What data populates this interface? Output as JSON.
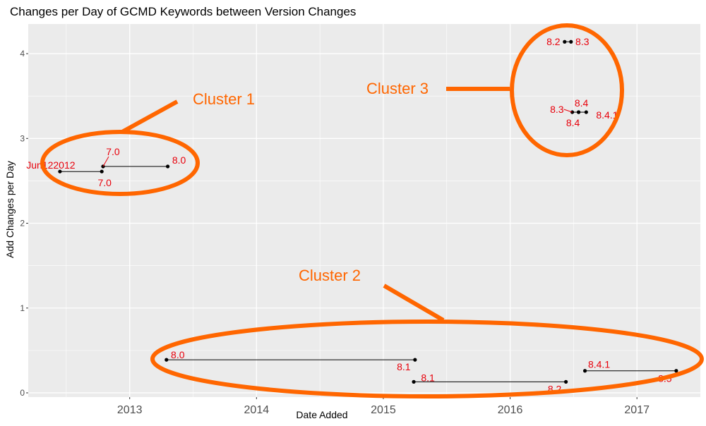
{
  "chart_data": {
    "type": "scatter",
    "title": "Changes per Day of GCMD Keywords between Version Changes",
    "xlabel": "Date Added",
    "ylabel": "Add Changes per Day",
    "xlim": [
      2012.2,
      2017.5
    ],
    "ylim": [
      -0.05,
      4.35
    ],
    "x_ticks": [
      {
        "value": 2013,
        "label": "2013"
      },
      {
        "value": 2014,
        "label": "2014"
      },
      {
        "value": 2015,
        "label": "2015"
      },
      {
        "value": 2016,
        "label": "2016"
      },
      {
        "value": 2017,
        "label": "2017"
      }
    ],
    "y_ticks": [
      {
        "value": 0,
        "label": "0"
      },
      {
        "value": 1,
        "label": "1"
      },
      {
        "value": 2,
        "label": "2"
      },
      {
        "value": 3,
        "label": "3"
      },
      {
        "value": 4,
        "label": "4"
      }
    ],
    "grid": true,
    "segments": [
      {
        "from": "Jun122012",
        "to": "7.0",
        "x": [
          2012.45,
          2012.78
        ],
        "y": [
          2.61,
          2.61
        ]
      },
      {
        "from": "7.0",
        "to": "8.0",
        "x": [
          2012.79,
          2013.3
        ],
        "y": [
          2.67,
          2.67
        ]
      },
      {
        "from": "8.0",
        "to": "8.1",
        "x": [
          2013.29,
          2015.25
        ],
        "y": [
          0.39,
          0.39
        ]
      },
      {
        "from": "8.1",
        "to": "8.2",
        "x": [
          2015.24,
          2016.44
        ],
        "y": [
          0.13,
          0.13
        ]
      },
      {
        "from": "8.2",
        "to": "8.3",
        "x": [
          2016.43,
          2016.48
        ],
        "y": [
          4.14,
          4.14
        ]
      },
      {
        "from": "8.3",
        "to": "8.4",
        "x": [
          2016.49,
          2016.54
        ],
        "y": [
          3.31,
          3.31
        ]
      },
      {
        "from": "8.4",
        "to": "8.4.1",
        "x": [
          2016.54,
          2016.6
        ],
        "y": [
          3.31,
          3.31
        ]
      },
      {
        "from": "8.4.1",
        "to": "8.5",
        "x": [
          2016.59,
          2017.31
        ],
        "y": [
          0.26,
          0.26
        ]
      }
    ],
    "labels": [
      {
        "text": "Jun122012",
        "x": 2012.45,
        "y": 2.61
      },
      {
        "text": "7.0",
        "x": 2012.78,
        "y": 2.61
      },
      {
        "text": "7.0",
        "x": 2012.79,
        "y": 2.67
      },
      {
        "text": "8.0",
        "x": 2013.3,
        "y": 2.67
      },
      {
        "text": "8.0",
        "x": 2013.29,
        "y": 0.39
      },
      {
        "text": "8.1",
        "x": 2015.25,
        "y": 0.39
      },
      {
        "text": "8.1",
        "x": 2015.24,
        "y": 0.13
      },
      {
        "text": "8.2",
        "x": 2016.44,
        "y": 0.13
      },
      {
        "text": "8.2",
        "x": 2016.43,
        "y": 4.14
      },
      {
        "text": "8.3",
        "x": 2016.48,
        "y": 4.14
      },
      {
        "text": "8.3",
        "x": 2016.49,
        "y": 3.31
      },
      {
        "text": "8.4",
        "x": 2016.54,
        "y": 3.31
      },
      {
        "text": "8.4",
        "x": 2016.54,
        "y": 3.31
      },
      {
        "text": "8.4.1",
        "x": 2016.6,
        "y": 3.31
      },
      {
        "text": "8.4.1",
        "x": 2016.59,
        "y": 0.26
      },
      {
        "text": "8.5",
        "x": 2017.31,
        "y": 0.26
      }
    ],
    "annotations": [
      {
        "text": "Cluster 1"
      },
      {
        "text": "Cluster 2"
      },
      {
        "text": "Cluster 3"
      }
    ],
    "colors": {
      "panel": "#ebebeb",
      "grid": "#ffffff",
      "points": "#000000",
      "labels": "#e8000b",
      "clusters": "#ff6600"
    }
  }
}
